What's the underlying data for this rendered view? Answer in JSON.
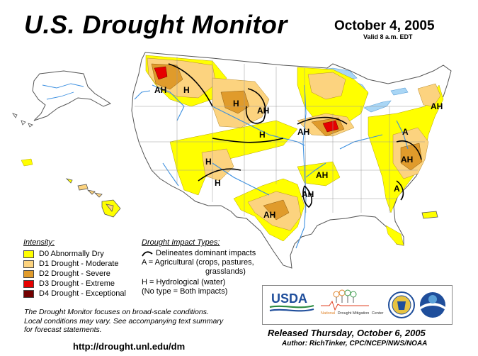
{
  "header": {
    "title": "U.S. Drought Monitor",
    "date": "October 4, 2005",
    "valid": "Valid 8 a.m. EDT"
  },
  "legend": {
    "title": "Intensity:",
    "items": [
      {
        "label": "D0 Abnormally Dry",
        "color": "#ffff00"
      },
      {
        "label": "D1 Drought - Moderate",
        "color": "#fcd37f"
      },
      {
        "label": "D2 Drought - Severe",
        "color": "#e09b2b"
      },
      {
        "label": "D3 Drought - Extreme",
        "color": "#e60000"
      },
      {
        "label": "D4 Drought - Exceptional",
        "color": "#730000"
      }
    ]
  },
  "impacts": {
    "title": "Drought Impact Types:",
    "line1": "Delineates dominant impacts",
    "line2a": "A = Agricultural (crops, pastures,",
    "line2b": "grasslands)",
    "line3": "H = Hydrological (water)",
    "line4": "(No type = Both impacts)"
  },
  "map_labels": [
    "AH",
    "H",
    "H",
    "AH",
    "H",
    "AH",
    "H",
    "AH",
    "AH",
    "A",
    "AH",
    "A",
    "AH",
    "H",
    "AH"
  ],
  "disclaimer": {
    "line1": "The Drought Monitor focuses on broad-scale conditions.",
    "line2": "Local conditions may vary.  See accompanying text summary",
    "line3": "for forecast statements."
  },
  "url": "http://drought.unl.edu/dm",
  "logos": {
    "usda": "USDA",
    "ndmc_prefix": "National",
    "ndmc_main": "Drought Mitigation",
    "ndmc_suffix": "Center"
  },
  "footer": {
    "released": "Released Thursday, October 6, 2005",
    "author": "Author:  RichTinker, CPC/NCEP/NWS/NOAA"
  },
  "colors": {
    "d0": "#ffff00",
    "d1": "#fcd37f",
    "d2": "#e09b2b",
    "d3": "#e60000",
    "d4": "#730000",
    "water": "#a9d6f5",
    "river": "#3b8fe0"
  }
}
